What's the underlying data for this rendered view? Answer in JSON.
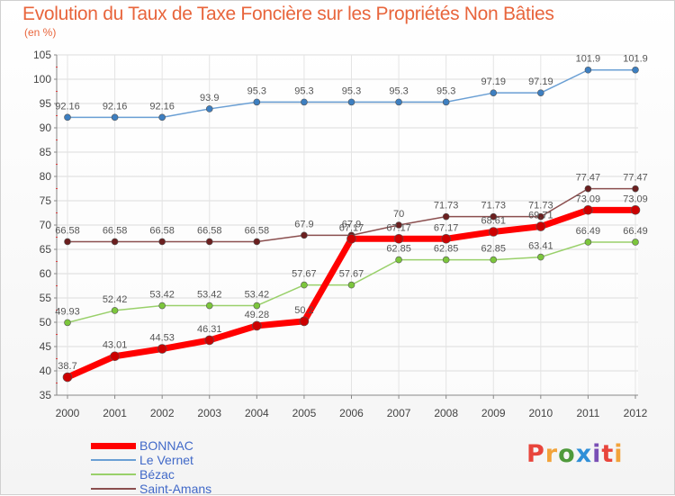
{
  "title": "Evolution du Taux de Taxe Foncière sur les Propriétés Non Bâties",
  "unit": "(en %)",
  "logo": {
    "text": "Proxiti",
    "colors": [
      "#e8453c",
      "#f2a33a",
      "#4f9a3b",
      "#2f8fd8",
      "#7a4fb5",
      "#e8453c",
      "#f2a33a"
    ]
  },
  "chart_data": {
    "type": "line",
    "title": "Evolution du Taux de Taxe Foncière sur les Propriétés Non Bâties",
    "ylabel": "(en %)",
    "xlabel": "",
    "ylim": [
      35,
      105
    ],
    "yticks": [
      "35",
      "40",
      "45",
      "50",
      "55",
      "60",
      "65",
      "70",
      "75",
      "80",
      "85",
      "90",
      "95",
      "100",
      "105"
    ],
    "grid": true,
    "legend": "bottom-left",
    "x": [
      "2000",
      "2001",
      "2002",
      "2003",
      "2004",
      "2005",
      "2006",
      "2007",
      "2008",
      "2009",
      "2010",
      "2011",
      "2012"
    ],
    "series": [
      {
        "name": "BONNAC",
        "color": "#ff0000",
        "values": [
          38.7,
          43.01,
          44.53,
          46.31,
          49.28,
          50.2,
          67.17,
          67.17,
          67.17,
          68.61,
          69.71,
          73.09,
          73.09
        ],
        "labels": [
          "38.7",
          "43.01",
          "44.53",
          "46.31",
          "49.28",
          "50.2",
          "67.17",
          "67.17",
          "67.17",
          "68.61",
          "69.71",
          "73.09",
          "73.09"
        ]
      },
      {
        "name": "Le Vernet",
        "color": "#6a9fd4",
        "values": [
          92.16,
          92.16,
          92.16,
          93.9,
          95.3,
          95.3,
          95.3,
          95.3,
          95.3,
          97.19,
          97.19,
          101.9,
          101.9
        ],
        "labels": [
          "92.16",
          "92.16",
          "92.16",
          "93.9",
          "95.3",
          "95.3",
          "95.3",
          "95.3",
          "95.3",
          "97.19",
          "97.19",
          "101.9",
          "101.9"
        ]
      },
      {
        "name": "Bézac",
        "color": "#99d06a",
        "values": [
          49.93,
          52.42,
          53.42,
          53.42,
          53.42,
          57.67,
          57.67,
          62.85,
          62.85,
          62.85,
          63.41,
          66.49,
          66.49
        ],
        "labels": [
          "49.93",
          "52.42",
          "53.42",
          "53.42",
          "53.42",
          "57.67",
          "57.67",
          "62.85",
          "62.85",
          "62.85",
          "63.41",
          "66.49",
          "66.49"
        ]
      },
      {
        "name": "Saint-Amans",
        "color": "#8b4f4f",
        "values": [
          66.58,
          66.58,
          66.58,
          66.58,
          66.58,
          67.9,
          67.9,
          70,
          71.73,
          71.73,
          71.73,
          77.47,
          77.47
        ],
        "labels": [
          "66.58",
          "66.58",
          "66.58",
          "66.58",
          "66.58",
          "67.9",
          "67.9",
          "70",
          "71.73",
          "71.73",
          "71.73",
          "77.47",
          "77.47"
        ]
      }
    ]
  }
}
